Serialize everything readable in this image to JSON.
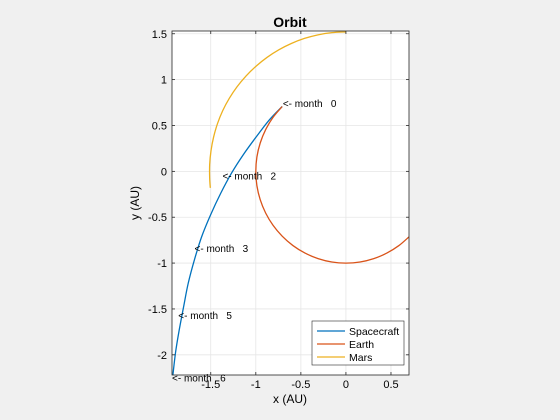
{
  "chart_data": {
    "type": "line",
    "title": "Orbit",
    "xlabel": "x (AU)",
    "ylabel": "y (AU)",
    "xlim": [
      -1.93,
      0.7
    ],
    "ylim": [
      -2.22,
      1.53
    ],
    "grid": true,
    "legend_position": "bottom-right",
    "x_ticks": [
      {
        "value": -1.5,
        "label": "-1.5"
      },
      {
        "value": -1,
        "label": "-1"
      },
      {
        "value": -0.5,
        "label": "-0.5"
      },
      {
        "value": 0,
        "label": "0"
      },
      {
        "value": 0.5,
        "label": "0.5"
      }
    ],
    "y_ticks": [
      {
        "value": 1.5,
        "label": "1.5"
      },
      {
        "value": 1,
        "label": "1"
      },
      {
        "value": 0.5,
        "label": "0.5"
      },
      {
        "value": 0,
        "label": "0"
      },
      {
        "value": -0.5,
        "label": "-0.5"
      },
      {
        "value": -1,
        "label": "-1"
      },
      {
        "value": -1.5,
        "label": "-1.5"
      },
      {
        "value": -2,
        "label": "-2"
      }
    ],
    "series": [
      {
        "name": "Spacecraft",
        "color": "#0072BD",
        "points": [
          [
            -0.707,
            0.707
          ],
          [
            -0.85,
            0.56
          ],
          [
            -1.0,
            0.37
          ],
          [
            -1.14,
            0.18
          ],
          [
            -1.27,
            -0.02
          ],
          [
            -1.39,
            -0.24
          ],
          [
            -1.5,
            -0.47
          ],
          [
            -1.6,
            -0.71
          ],
          [
            -1.68,
            -0.96
          ],
          [
            -1.75,
            -1.22
          ],
          [
            -1.8,
            -1.47
          ],
          [
            -1.85,
            -1.73
          ],
          [
            -1.89,
            -1.97
          ],
          [
            -1.92,
            -2.22
          ]
        ]
      },
      {
        "name": "Earth",
        "color": "#D95319",
        "points": [
          [
            -0.707,
            0.707
          ],
          [
            -0.809,
            0.588
          ],
          [
            -0.891,
            0.454
          ],
          [
            -0.951,
            0.309
          ],
          [
            -0.988,
            0.156
          ],
          [
            -1.0,
            0.0
          ],
          [
            -0.988,
            -0.156
          ],
          [
            -0.951,
            -0.309
          ],
          [
            -0.891,
            -0.454
          ],
          [
            -0.809,
            -0.588
          ],
          [
            -0.707,
            -0.707
          ],
          [
            -0.588,
            -0.809
          ],
          [
            -0.454,
            -0.891
          ],
          [
            -0.309,
            -0.951
          ],
          [
            -0.156,
            -0.988
          ],
          [
            0.0,
            -1.0
          ],
          [
            0.156,
            -0.988
          ],
          [
            0.309,
            -0.951
          ],
          [
            0.454,
            -0.891
          ],
          [
            0.588,
            -0.809
          ],
          [
            0.7,
            -0.714
          ]
        ]
      },
      {
        "name": "Mars",
        "color": "#EDB120",
        "points": [
          [
            0.0,
            1.52
          ],
          [
            -0.156,
            1.512
          ],
          [
            -0.31,
            1.488
          ],
          [
            -0.46,
            1.449
          ],
          [
            -0.606,
            1.394
          ],
          [
            -0.745,
            1.325
          ],
          [
            -0.876,
            1.242
          ],
          [
            -0.998,
            1.146
          ],
          [
            -1.109,
            1.039
          ],
          [
            -1.208,
            0.922
          ],
          [
            -1.294,
            0.796
          ],
          [
            -1.367,
            0.662
          ],
          [
            -1.425,
            0.521
          ],
          [
            -1.468,
            0.375
          ],
          [
            -1.497,
            0.226
          ],
          [
            -1.512,
            0.074
          ],
          [
            -1.512,
            -0.074
          ],
          [
            -1.505,
            -0.18
          ]
        ]
      }
    ],
    "annotations": [
      {
        "text": "<- month   0",
        "x": -0.7,
        "y": 0.74
      },
      {
        "text": "<- month   2",
        "x": -1.37,
        "y": -0.05
      },
      {
        "text": "<- month   3",
        "x": -1.68,
        "y": -0.84
      },
      {
        "text": "<- month   5",
        "x": -1.86,
        "y": -1.57
      },
      {
        "text": "<- month   6",
        "x": -1.93,
        "y": -2.25
      }
    ]
  }
}
